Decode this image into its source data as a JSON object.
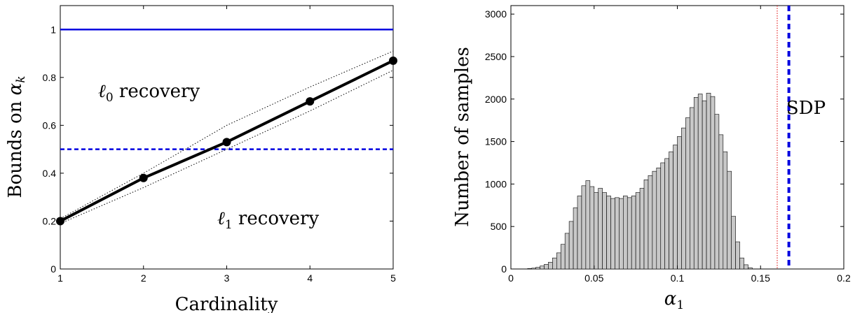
{
  "chart_data": [
    {
      "type": "line",
      "title": "",
      "xlabel": "Cardinality",
      "ylabel_text": "Bounds on ",
      "ylabel_symbol": "α",
      "ylabel_sub": "k",
      "xlim": [
        1,
        5
      ],
      "ylim": [
        0,
        1.1
      ],
      "xticks": [
        1,
        2,
        3,
        4,
        5
      ],
      "yticks": [
        0,
        0.2,
        0.4,
        0.6,
        0.8,
        1
      ],
      "x": [
        1,
        2,
        3,
        4,
        5
      ],
      "series": [
        {
          "style": "solid-black-markers",
          "color": "#000000",
          "values": [
            0.2,
            0.38,
            0.53,
            0.7,
            0.87
          ]
        },
        {
          "style": "dotted-upper",
          "color": "#000000",
          "values": [
            0.21,
            0.4,
            0.6,
            0.76,
            0.91
          ]
        },
        {
          "style": "dotted-lower",
          "color": "#000000",
          "values": [
            0.19,
            0.34,
            0.5,
            0.66,
            0.83
          ]
        },
        {
          "style": "solid-blue-hline",
          "color": "#0000e0",
          "values": [
            1,
            1,
            1,
            1,
            1
          ]
        },
        {
          "style": "dashed-blue-hline",
          "color": "#0000e0",
          "values": [
            0.5,
            0.5,
            0.5,
            0.5,
            0.5
          ]
        }
      ],
      "annotations": [
        {
          "symbol": "ℓ",
          "sub": "0",
          "text": " recovery",
          "x": 1.45,
          "y": 0.78
        },
        {
          "symbol": "ℓ",
          "sub": "1",
          "text": " recovery",
          "x": 3.2,
          "y": 0.21
        }
      ]
    },
    {
      "type": "bar",
      "subtype": "histogram",
      "title": "",
      "xlabel_symbol": "α",
      "xlabel_sub": "1",
      "ylabel": "Number of samples",
      "xlim": [
        0,
        0.2
      ],
      "ylim": [
        0,
        3100
      ],
      "xticks": [
        0,
        0.05,
        0.1,
        0.15,
        0.2
      ],
      "xtick_labels": [
        "0",
        "0.05",
        "0.1",
        "0.15",
        "0.2"
      ],
      "yticks": [
        0,
        500,
        1000,
        1500,
        2000,
        2500,
        3000
      ],
      "bin_start": 0.01,
      "bin_width": 0.0025,
      "bar_color": "#c8c8c8",
      "values": [
        5,
        10,
        20,
        35,
        55,
        80,
        130,
        190,
        290,
        420,
        560,
        720,
        860,
        980,
        1040,
        970,
        900,
        950,
        900,
        860,
        830,
        840,
        830,
        860,
        840,
        860,
        900,
        950,
        1050,
        1100,
        1150,
        1190,
        1250,
        1300,
        1380,
        1460,
        1560,
        1660,
        1780,
        1900,
        2020,
        2060,
        1980,
        2070,
        2030,
        1820,
        1580,
        1380,
        1150,
        620,
        320,
        130,
        50,
        15
      ],
      "vlines": [
        {
          "x": 0.16,
          "color": "#e00000",
          "style": "dotted"
        },
        {
          "x": 0.167,
          "color": "#0000e0",
          "style": "dashed"
        }
      ],
      "annotation_text": "SDP"
    }
  ]
}
